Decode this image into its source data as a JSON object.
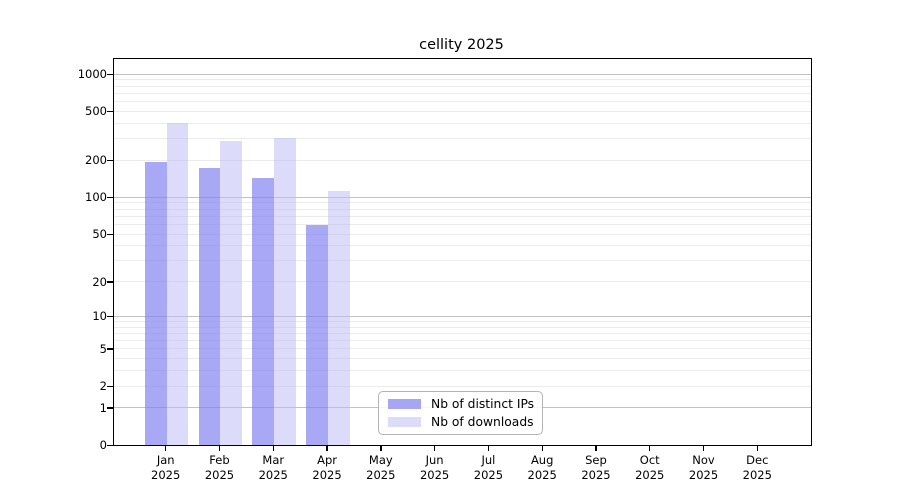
{
  "title": "cellity 2025",
  "chart_data": {
    "type": "bar",
    "title": "cellity 2025",
    "categories": [
      "Jan",
      "Feb",
      "Mar",
      "Apr",
      "May",
      "Jun",
      "Jul",
      "Aug",
      "Sep",
      "Oct",
      "Nov",
      "Dec"
    ],
    "category_year": "2025",
    "series": [
      {
        "name": "Nb of distinct IPs",
        "values": [
          195,
          174,
          144,
          59,
          null,
          null,
          null,
          null,
          null,
          null,
          null,
          null
        ],
        "fill": "rgba(127,127,240,0.68)",
        "swatch_color": "#a6a6f4"
      },
      {
        "name": "Nb of downloads",
        "values": [
          400,
          290,
          305,
          113,
          null,
          null,
          null,
          null,
          null,
          null,
          null,
          null
        ],
        "fill": "rgba(187,187,246,0.52)",
        "swatch_color": "#dcdcf9"
      }
    ],
    "y_axis": {
      "scale": "log10(1+value)",
      "tick_values": [
        0,
        1,
        2,
        5,
        10,
        20,
        50,
        100,
        200,
        500,
        1000
      ],
      "tick_labels": [
        "0",
        "1",
        "2",
        "5",
        "10",
        "20",
        "50",
        "100",
        "200",
        "500",
        "1000"
      ],
      "major_grid_values": [
        1,
        10,
        100,
        1000
      ],
      "minor_grid_values": [
        2,
        3,
        4,
        5,
        6,
        7,
        8,
        9,
        20,
        30,
        40,
        50,
        60,
        70,
        80,
        90,
        200,
        300,
        400,
        500,
        600,
        700,
        800,
        900
      ],
      "ylim": [
        0,
        1325
      ]
    },
    "grid": {
      "major_color": "#c2c2c2",
      "minor_color": "#ebebeb"
    },
    "legend": {
      "position": "inside-bottom-center",
      "border_color": "#b4b4b4"
    }
  }
}
